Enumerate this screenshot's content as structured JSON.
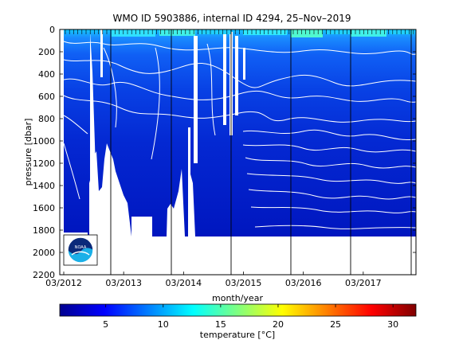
{
  "chart_data": {
    "type": "heatmap",
    "title": "WMO ID 5903886, internal ID 4294, 25–Nov–2019",
    "xlabel": "month/year",
    "ylabel": "pressure [dbar]",
    "x_ticks": [
      "03/2012",
      "03/2013",
      "03/2014",
      "03/2015",
      "03/2016",
      "03/2017"
    ],
    "x_range": [
      "2012-03",
      "2018-03"
    ],
    "y_ticks": [
      0,
      200,
      400,
      600,
      800,
      1000,
      1200,
      1400,
      1600,
      1800,
      2000,
      2200
    ],
    "ylim": [
      2200,
      0
    ],
    "y_reversed": true,
    "max_profile_pressure_dbar": 1850,
    "colorbar": {
      "label": "temperature [°C]",
      "range": [
        1,
        32
      ],
      "ticks": [
        5,
        10,
        15,
        20,
        25,
        30
      ],
      "colormap": "jet"
    },
    "approx_temperature_by_pressure": [
      {
        "pressure": 0,
        "temperature": 12
      },
      {
        "pressure": 100,
        "temperature": 9
      },
      {
        "pressure": 200,
        "temperature": 7
      },
      {
        "pressure": 400,
        "temperature": 5.5
      },
      {
        "pressure": 600,
        "temperature": 4.5
      },
      {
        "pressure": 800,
        "temperature": 4
      },
      {
        "pressure": 1000,
        "temperature": 3.5
      },
      {
        "pressure": 1200,
        "temperature": 3
      },
      {
        "pressure": 1500,
        "temperature": 2.5
      },
      {
        "pressure": 1850,
        "temperature": 2
      }
    ],
    "logo": "NOAA"
  }
}
